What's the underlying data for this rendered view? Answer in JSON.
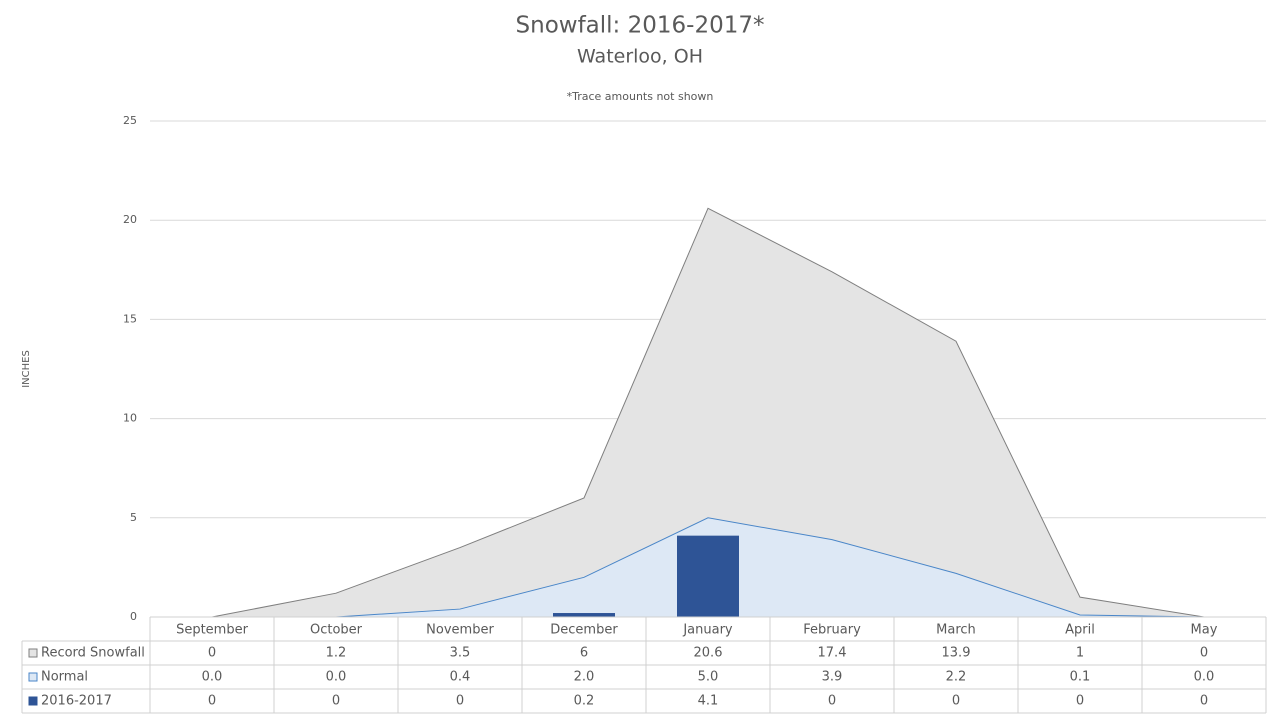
{
  "chart_data": {
    "type": "combo",
    "title": "Snowfall: 2016-2017*",
    "subtitle": "Waterloo, OH",
    "note": "*Trace amounts not shown",
    "y_label": "INCHES",
    "categories": [
      "September",
      "October",
      "November",
      "December",
      "January",
      "February",
      "March",
      "April",
      "May"
    ],
    "series": [
      {
        "name": "Record Snowfall",
        "type": "area",
        "color": "#e4e4e4",
        "line_color": "#7f7f7f",
        "values": [
          0,
          1.2,
          3.5,
          6,
          20.6,
          17.4,
          13.9,
          1,
          0
        ]
      },
      {
        "name": "Normal",
        "type": "area",
        "color": "#dde8f5",
        "line_color": "#4a86c8",
        "values": [
          0,
          0,
          0.4,
          2,
          5,
          3.9,
          2.2,
          0.1,
          0
        ],
        "value_labels": [
          "0.0",
          "0.0",
          "0.4",
          "2.0",
          "5.0",
          "3.9",
          "2.2",
          "0.1",
          "0.0"
        ]
      },
      {
        "name": "2016-2017",
        "type": "bar",
        "color": "#2e5496",
        "values": [
          0,
          0,
          0,
          0.2,
          4.1,
          0,
          0,
          0,
          0
        ]
      }
    ],
    "ylim": [
      0,
      25
    ],
    "yticks": [
      0,
      5,
      10,
      15,
      20,
      25
    ],
    "grid": true
  }
}
